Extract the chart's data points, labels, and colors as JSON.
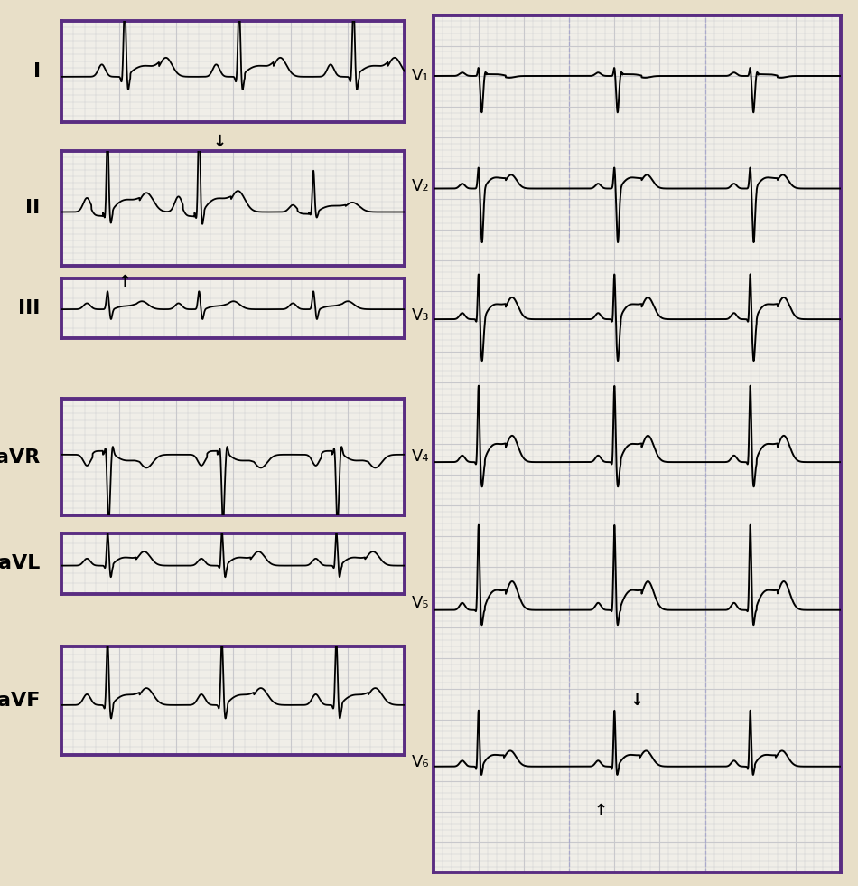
{
  "bg_color": "#e8dfc8",
  "grid_bg_color": "#f0eee8",
  "grid_color": "#c8c8cc",
  "ecg_color": "#000000",
  "border_color": "#5a2d82",
  "lead_labels_left": [
    "I",
    "II",
    "III",
    "aVR",
    "aVL",
    "aVF"
  ],
  "lead_labels_right": [
    "V₁",
    "V₂",
    "V₃",
    "V₄",
    "V₅",
    "V₆"
  ],
  "label_fontsize": 16,
  "sublabel_fontsize": 13
}
